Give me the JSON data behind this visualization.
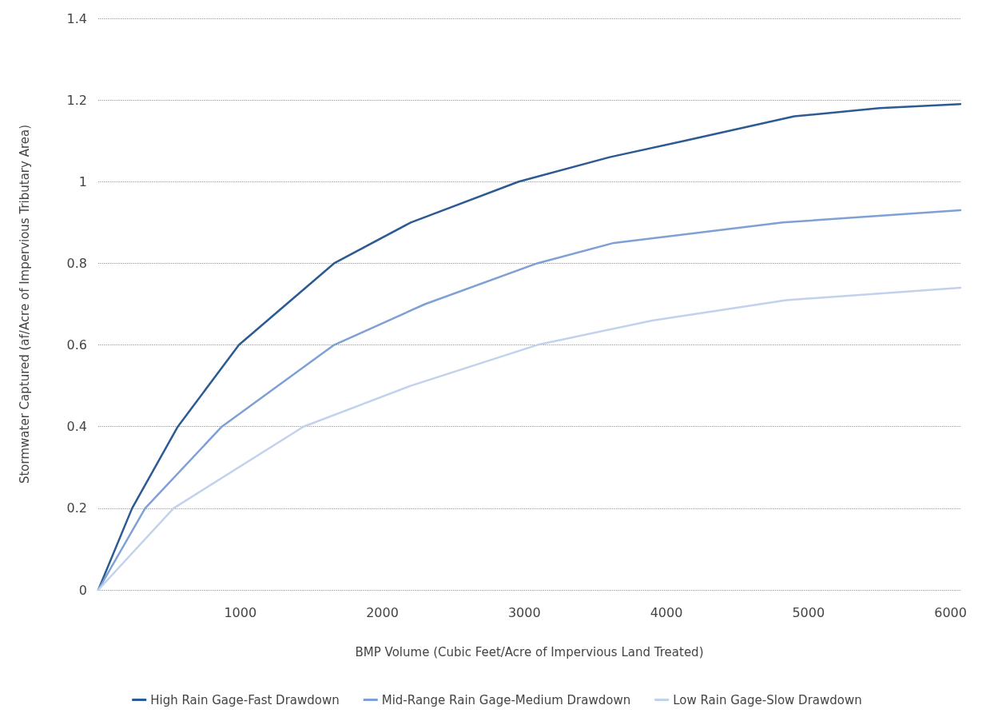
{
  "chart_data": {
    "type": "line",
    "xlabel": "BMP Volume (Cubic Feet/Acre of Impervious Land Treated)",
    "ylabel": "Stormwater Captured (af/Acre of Impervious Tributary Area)",
    "xlim": [
      0,
      6070
    ],
    "xticks": [
      1000,
      2000,
      3000,
      4000,
      5000,
      6000
    ],
    "ylim": [
      0,
      1.4
    ],
    "yticks": [
      0,
      0.2,
      0.4,
      0.6,
      0.8,
      1,
      1.2,
      1.4
    ],
    "grid": "y",
    "legend": "bottom",
    "marker": "none",
    "line_style": "solid",
    "series": [
      {
        "name": "High Rain Gage-Fast Drawdown",
        "color": "#2c5a93",
        "x": [
          0,
          238,
          560,
          990,
          1660,
          2200,
          2960,
          3600,
          4125,
          4900,
          5500,
          6070
        ],
        "values": [
          0,
          0.2,
          0.4,
          0.6,
          0.8,
          0.9,
          1.0,
          1.06,
          1.1,
          1.16,
          1.18,
          1.19
        ]
      },
      {
        "name": "Mid-Range Rain Gage-Medium Drawdown",
        "color": "#7fa0d4",
        "x": [
          0,
          330,
          870,
          1660,
          2300,
          3090,
          3630,
          4820,
          6070
        ],
        "values": [
          0,
          0.2,
          0.4,
          0.6,
          0.7,
          0.8,
          0.85,
          0.9,
          0.93
        ]
      },
      {
        "name": "Low Rain Gage-Slow Drawdown",
        "color": "#c2d2ec",
        "x": [
          0,
          530,
          1445,
          2200,
          3090,
          3900,
          4845,
          6070
        ],
        "values": [
          0,
          0.2,
          0.4,
          0.5,
          0.6,
          0.66,
          0.71,
          0.74
        ]
      }
    ]
  }
}
